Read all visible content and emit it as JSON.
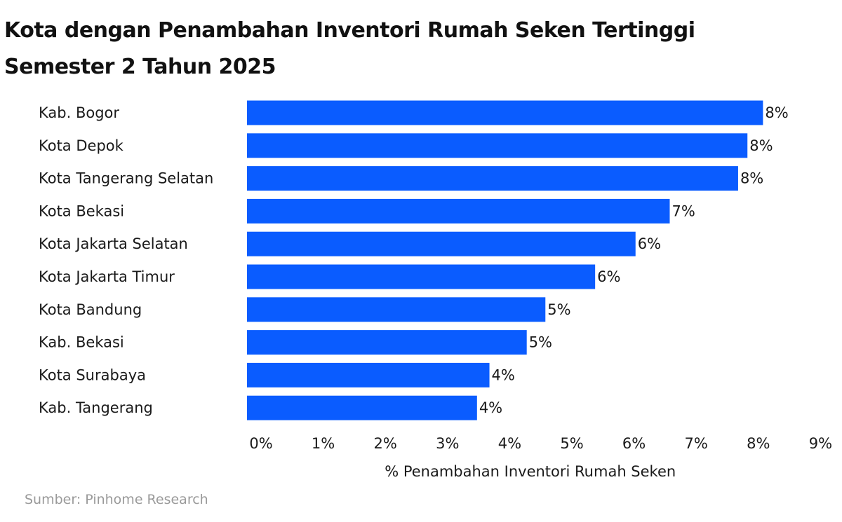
{
  "chart_data": {
    "type": "bar",
    "orientation": "horizontal",
    "title": [
      "Kota dengan Penambahan Inventori Rumah Seken Tertinggi",
      "Semester 2 Tahun 2025"
    ],
    "xlabel": "% Penambahan Inventori Rumah Seken",
    "ylabel": "",
    "xlim": [
      0,
      9
    ],
    "x_ticks": [
      "0%",
      "1%",
      "2%",
      "3%",
      "4%",
      "5%",
      "6%",
      "7%",
      "8%",
      "9%"
    ],
    "grid": false,
    "bar_color": "#0a5cff",
    "categories": [
      "Kab. Bogor",
      "Kota Depok",
      "Kota Tangerang Selatan",
      "Kota Bekasi",
      "Kota Jakarta Selatan",
      "Kota Jakarta Timur",
      "Kota Bandung",
      "Kab. Bekasi",
      "Kota Surabaya",
      "Kab. Tangerang"
    ],
    "values": [
      8.3,
      8.05,
      7.9,
      6.8,
      6.25,
      5.6,
      4.8,
      4.5,
      3.9,
      3.7
    ],
    "data_labels": [
      "8%",
      "8%",
      "8%",
      "7%",
      "6%",
      "6%",
      "5%",
      "5%",
      "4%",
      "4%"
    ]
  },
  "source": "Sumber: Pinhome Research"
}
